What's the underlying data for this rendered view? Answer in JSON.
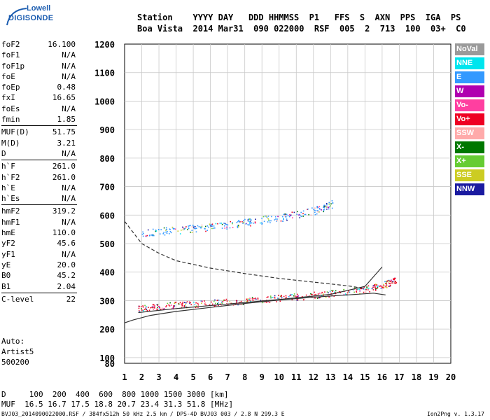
{
  "logo": {
    "top": "Lowell",
    "bottom": "DIGISONDE"
  },
  "header": {
    "line1": "Station    YYYY DAY   DDD HHMMSS  P1   FFS  S  AXN  PPS  IGA  PS",
    "line2": "Boa Vista  2014 Mar31  090 022000  RSF  005  2  713  100  03+  C0"
  },
  "params": [
    [
      {
        "label": "foF2",
        "value": "16.100"
      },
      {
        "label": "foF1",
        "value": "N/A"
      },
      {
        "label": "foF1p",
        "value": "N/A"
      },
      {
        "label": "foE",
        "value": "N/A"
      },
      {
        "label": "foEp",
        "value": "0.48"
      },
      {
        "label": "fxI",
        "value": "16.65"
      },
      {
        "label": "foEs",
        "value": "N/A"
      },
      {
        "label": "fmin",
        "value": "1.85"
      }
    ],
    [
      {
        "label": "MUF(D)",
        "value": "51.75"
      },
      {
        "label": "M(D)",
        "value": "3.21"
      },
      {
        "label": "D",
        "value": "N/A"
      }
    ],
    [
      {
        "label": "h`F",
        "value": "261.0"
      },
      {
        "label": "h`F2",
        "value": "261.0"
      },
      {
        "label": "h`E",
        "value": "N/A"
      },
      {
        "label": "h`Es",
        "value": "N/A"
      }
    ],
    [
      {
        "label": "hmF2",
        "value": "319.2"
      },
      {
        "label": "hmF1",
        "value": "N/A"
      },
      {
        "label": "hmE",
        "value": "110.0"
      },
      {
        "label": "yF2",
        "value": "45.6"
      },
      {
        "label": "yF1",
        "value": "N/A"
      },
      {
        "label": "yE",
        "value": "20.0"
      },
      {
        "label": "B0",
        "value": "45.2"
      },
      {
        "label": "B1",
        "value": "2.04"
      }
    ],
    [
      {
        "label": "C-level",
        "value": "22"
      }
    ]
  ],
  "auto": {
    "line1": "Auto:",
    "line2": "Artist5",
    "line3": "500200"
  },
  "bottom": {
    "d_line": "D     100  200  400  600  800 1000 1500 3000 [km]",
    "muf_line": "MUF  16.5 16.7 17.5 18.8 20.7 23.4 31.3 51.8 [MHz]"
  },
  "footer": {
    "left": "BVJ03_2014090022000.RSF / 384fx512h 50 kHz 2.5 km / DPS-4D BVJ03 003 / 2.8 N 299.3 E",
    "right": "Ion2Png v. 1.3.17"
  },
  "legend": [
    {
      "label": "NoVal",
      "color": "#9a9a9a"
    },
    {
      "label": "NNE",
      "color": "#00e5ee"
    },
    {
      "label": "E",
      "color": "#3399ff"
    },
    {
      "label": "W",
      "color": "#b000b0"
    },
    {
      "label": "Vo-",
      "color": "#ff3fa0"
    },
    {
      "label": "Vo+",
      "color": "#ee0022"
    },
    {
      "label": "SSW",
      "color": "#ffaaaa"
    },
    {
      "label": "X-",
      "color": "#007700"
    },
    {
      "label": "X+",
      "color": "#66cc33"
    },
    {
      "label": "SSE",
      "color": "#cccc22"
    },
    {
      "label": "NNW",
      "color": "#1a1aa0"
    }
  ],
  "chart_data": {
    "type": "scatter",
    "xlim": [
      1,
      20
    ],
    "ylim": [
      80,
      1200
    ],
    "x_ticks": [
      1,
      2,
      3,
      4,
      5,
      6,
      7,
      8,
      9,
      10,
      11,
      12,
      13,
      14,
      15,
      16,
      17,
      18,
      19,
      20
    ],
    "y_ticks": [
      80,
      100,
      200,
      300,
      400,
      500,
      600,
      700,
      800,
      900,
      1000,
      1100,
      1200
    ],
    "grid": true,
    "series": [
      {
        "name": "Vo+",
        "kind": "scatter_band",
        "color": "#ee0022",
        "x": [
          1.8,
          3,
          5,
          7,
          9,
          11,
          13,
          15,
          16.2,
          16.8
        ],
        "y": [
          272,
          280,
          288,
          296,
          304,
          314,
          326,
          340,
          358,
          372
        ],
        "spread": 12
      },
      {
        "name": "E",
        "kind": "scatter_band",
        "color": "#3399ff",
        "x": [
          2,
          4,
          6,
          8,
          10,
          12,
          13.1
        ],
        "y": [
          535,
          548,
          560,
          575,
          592,
          615,
          640
        ],
        "spread": 14
      }
    ],
    "profiles": [
      {
        "style": "solid",
        "color": "#333333",
        "x": [
          1,
          1.5,
          2.5,
          4,
          6,
          8,
          10,
          12,
          14,
          15.5,
          16.2
        ],
        "y": [
          222,
          232,
          248,
          262,
          276,
          290,
          302,
          312,
          320,
          326,
          320
        ]
      },
      {
        "style": "solid",
        "color": "#333333",
        "x": [
          1.8,
          4,
          7,
          10,
          13,
          15,
          16
        ],
        "y": [
          258,
          272,
          288,
          304,
          322,
          350,
          418
        ]
      },
      {
        "style": "dashed",
        "color": "#333333",
        "x": [
          1,
          2,
          3,
          4,
          6,
          8,
          10,
          12,
          14,
          15
        ],
        "y": [
          578,
          500,
          466,
          440,
          414,
          395,
          378,
          365,
          352,
          342
        ]
      }
    ]
  }
}
